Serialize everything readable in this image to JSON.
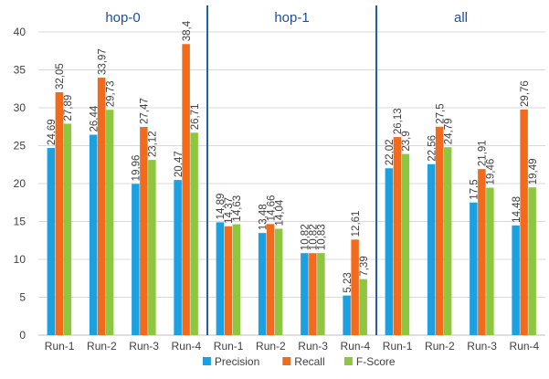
{
  "chart_data": {
    "type": "bar",
    "groups": [
      {
        "label": "hop-0",
        "categories": [
          "Run-1",
          "Run-2",
          "Run-3",
          "Run-4"
        ]
      },
      {
        "label": "hop-1",
        "categories": [
          "Run-1",
          "Run-2",
          "Run-3",
          "Run-4"
        ]
      },
      {
        "label": "all",
        "categories": [
          "Run-1",
          "Run-2",
          "Run-3",
          "Run-4"
        ]
      }
    ],
    "series": [
      {
        "name": "Precision",
        "color": "#1BA1E2",
        "values": [
          24.69,
          26.44,
          19.96,
          20.47,
          14.89,
          13.48,
          10.82,
          5.23,
          22.02,
          22.56,
          17.5,
          14.48
        ],
        "labels": [
          "24,69",
          "26,44",
          "19,96",
          "20,47",
          "14,89",
          "13,48",
          "10,82",
          "5,23",
          "22,02",
          "22,56",
          "17,5",
          "14,48"
        ]
      },
      {
        "name": "Recall",
        "color": "#F26B1D",
        "values": [
          32.05,
          33.97,
          27.47,
          38.4,
          14.37,
          14.66,
          10.82,
          12.61,
          26.13,
          27.5,
          21.91,
          29.76
        ],
        "labels": [
          "32,05",
          "33,97",
          "27,47",
          "38,4",
          "14,37",
          "14,66",
          "10,82",
          "12,61",
          "26,13",
          "27,5",
          "21,91",
          "29,76"
        ]
      },
      {
        "name": "F-Score",
        "color": "#8DC63F",
        "values": [
          27.89,
          29.73,
          23.12,
          26.71,
          14.63,
          14.04,
          10.83,
          7.39,
          23.9,
          24.79,
          19.46,
          19.49
        ],
        "labels": [
          "27,89",
          "29,73",
          "23,12",
          "26,71",
          "14,63",
          "14,04",
          "10,83",
          "7,39",
          "23,9",
          "24,79",
          "19,46",
          "19,49"
        ]
      }
    ],
    "yticks": [
      "0",
      "5",
      "10",
      "15",
      "20",
      "25",
      "30",
      "35",
      "40"
    ],
    "ylim": [
      0,
      40
    ],
    "grid": true,
    "legend": "bottom",
    "group_divider_color": "#1F5FA8",
    "group_label_color": "#1F4E9A"
  }
}
